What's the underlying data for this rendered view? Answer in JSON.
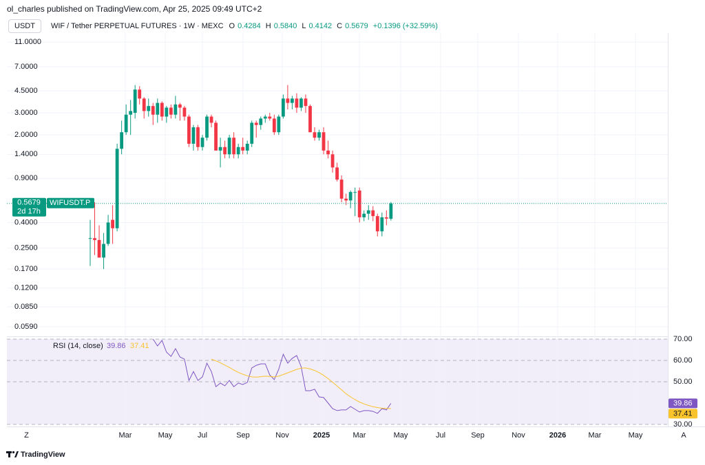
{
  "header": {
    "published": "ol_charles published on TradingView.com, Apr 25, 2025 09:49 UTC+2",
    "currency": "USDT",
    "symbol": "WIF / Tether PERPETUAL FUTURES · 1W · MEXC",
    "ohlc": [
      {
        "key": "O",
        "value": "0.4284"
      },
      {
        "key": "H",
        "value": "0.5840"
      },
      {
        "key": "L",
        "value": "0.4142"
      },
      {
        "key": "C",
        "value": "0.5679"
      }
    ],
    "change": "+0.1396 (+32.59%)"
  },
  "chart_data": [
    {
      "type": "candlestick",
      "ticker": "WIFUSDT.P",
      "countdown": "2d 17h",
      "up_color": "#089981",
      "down_color": "#f23645",
      "log_scale": true,
      "grid": true,
      "open": [
        0.3,
        0.3,
        0.29,
        0.21,
        0.27,
        0.42,
        0.36,
        1.55,
        2.1,
        2.9,
        3.0,
        4.6,
        3.9,
        3.1,
        3.4,
        2.9,
        3.6,
        2.8,
        3.3,
        2.9,
        3.5,
        3.3,
        2.8,
        1.7,
        2.3,
        1.6,
        1.9,
        2.8,
        2.5,
        1.5,
        1.6,
        1.4,
        1.9,
        1.4,
        1.6,
        1.5,
        1.7,
        2.5,
        2.4,
        2.7,
        2.8,
        2.7,
        2.1,
        2.8,
        3.9,
        3.6,
        3.9,
        3.3,
        3.9,
        3.4,
        2.1,
        1.9,
        2.1,
        1.5,
        1.4,
        1.1,
        0.88,
        0.62,
        0.6,
        0.7,
        0.72,
        0.44,
        0.47,
        0.5,
        0.45,
        0.34,
        0.44,
        0.4284
      ],
      "high": [
        0.42,
        0.58,
        0.38,
        0.33,
        0.46,
        0.55,
        1.7,
        2.6,
        3.5,
        3.8,
        5.0,
        4.9,
        4.0,
        3.9,
        3.6,
        3.9,
        3.7,
        3.4,
        3.5,
        4.1,
        3.6,
        3.4,
        2.9,
        2.4,
        2.4,
        2.0,
        2.9,
        2.9,
        2.6,
        1.9,
        1.8,
        2.0,
        2.1,
        1.7,
        1.9,
        1.8,
        2.6,
        2.6,
        2.8,
        2.9,
        3.0,
        2.9,
        2.9,
        4.2,
        5.0,
        4.1,
        4.3,
        4.0,
        4.2,
        3.5,
        2.3,
        2.2,
        2.3,
        1.8,
        1.5,
        1.2,
        0.95,
        0.68,
        0.72,
        0.76,
        0.76,
        0.5,
        0.55,
        0.54,
        0.47,
        0.48,
        0.5,
        0.584
      ],
      "low": [
        0.18,
        0.22,
        0.21,
        0.17,
        0.26,
        0.27,
        0.34,
        1.4,
        2.0,
        2.0,
        2.7,
        3.5,
        2.7,
        2.8,
        2.4,
        2.5,
        2.6,
        2.5,
        2.7,
        2.7,
        2.6,
        2.6,
        1.6,
        1.5,
        1.5,
        1.5,
        1.8,
        2.3,
        1.5,
        1.1,
        1.3,
        1.3,
        1.3,
        1.3,
        1.4,
        1.4,
        1.6,
        1.9,
        2.2,
        2.5,
        2.6,
        2.0,
        2.0,
        2.7,
        3.2,
        3.2,
        3.0,
        3.1,
        3.0,
        2.1,
        1.8,
        1.8,
        1.4,
        1.3,
        1.0,
        0.85,
        0.58,
        0.55,
        0.52,
        0.45,
        0.4,
        0.41,
        0.42,
        0.41,
        0.31,
        0.31,
        0.38,
        0.4142
      ],
      "close": [
        0.3,
        0.29,
        0.21,
        0.27,
        0.4,
        0.36,
        1.55,
        2.1,
        2.9,
        3.1,
        4.6,
        3.9,
        3.1,
        3.4,
        2.9,
        3.6,
        2.8,
        3.3,
        2.9,
        3.5,
        3.3,
        2.8,
        1.7,
        2.3,
        1.6,
        1.9,
        2.8,
        2.5,
        1.5,
        1.6,
        1.4,
        1.9,
        1.4,
        1.6,
        1.5,
        1.7,
        2.5,
        2.4,
        2.7,
        2.8,
        2.7,
        2.1,
        2.8,
        3.9,
        3.6,
        3.9,
        3.3,
        3.9,
        3.4,
        2.1,
        1.9,
        2.1,
        1.5,
        1.4,
        1.1,
        0.88,
        0.62,
        0.6,
        0.7,
        0.7,
        0.44,
        0.47,
        0.5,
        0.45,
        0.34,
        0.44,
        0.43,
        0.5679
      ],
      "ylim": [
        0.05,
        13
      ],
      "yticks": [
        {
          "value": 11,
          "label": "11.0000"
        },
        {
          "value": 7,
          "label": "7.0000"
        },
        {
          "value": 4.5,
          "label": "4.5000"
        },
        {
          "value": 3,
          "label": "3.0000"
        },
        {
          "value": 2,
          "label": "2.0000"
        },
        {
          "value": 1.4,
          "label": "1.4000"
        },
        {
          "value": 0.9,
          "label": "0.9000"
        },
        {
          "value": 0.4,
          "label": "0.4000"
        },
        {
          "value": 0.25,
          "label": "0.2500"
        },
        {
          "value": 0.17,
          "label": "0.1700"
        },
        {
          "value": 0.12,
          "label": "0.1200"
        },
        {
          "value": 0.085,
          "label": "0.0850"
        },
        {
          "value": 0.059,
          "label": "0.0590"
        }
      ],
      "x_labels": [
        "Mar",
        "May",
        "Jul",
        "Sep",
        "Nov",
        "2025",
        "Mar",
        "May",
        "Jul",
        "Sep",
        "Nov",
        "2026",
        "Mar",
        "May"
      ]
    },
    {
      "type": "line",
      "title": "RSI (14, close)",
      "band_fill": "#7e57c2",
      "series": [
        {
          "color": "#7e57c2",
          "values": [
            null,
            null,
            null,
            null,
            null,
            null,
            null,
            null,
            null,
            null,
            null,
            null,
            null,
            null,
            70.0,
            66.8,
            69.4,
            63.9,
            61.9,
            65.5,
            61.6,
            60.6,
            50.6,
            54.8,
            50.6,
            52.3,
            58.7,
            54.8,
            47.7,
            49.4,
            48.1,
            50.6,
            47.7,
            49.4,
            48.7,
            49.7,
            56.5,
            57.7,
            58.4,
            58.4,
            53.2,
            51.0,
            55.8,
            62.9,
            58.7,
            61.0,
            62.3,
            57.1,
            45.8,
            45.8,
            46.5,
            42.9,
            42.6,
            40.0,
            37.4,
            36.5,
            36.8,
            36.8,
            38.4,
            37.1,
            35.8,
            36.5,
            36.5,
            36.1,
            35.2,
            37.4,
            36.8,
            39.86
          ]
        },
        {
          "color": "#f9c32b",
          "values": [
            null,
            null,
            null,
            null,
            null,
            null,
            null,
            null,
            null,
            null,
            null,
            null,
            null,
            null,
            null,
            null,
            null,
            null,
            null,
            null,
            null,
            null,
            null,
            null,
            null,
            null,
            null,
            60.6,
            59.8,
            58.9,
            57.8,
            56.7,
            55.5,
            54.4,
            53.5,
            52.8,
            52.3,
            52.2,
            52.4,
            52.6,
            52.5,
            52.3,
            52.6,
            53.4,
            54.2,
            55.0,
            55.8,
            56.4,
            56.5,
            56.0,
            55.3,
            54.3,
            53.0,
            51.5,
            49.8,
            48.0,
            46.2,
            44.4,
            42.9,
            41.6,
            40.5,
            39.6,
            38.9,
            38.3,
            37.9,
            37.6,
            37.5,
            37.41
          ]
        }
      ],
      "ylim": [
        30,
        70
      ],
      "yticks": [
        {
          "value": 70,
          "label": "70.00"
        },
        {
          "value": 60,
          "label": "60.00"
        },
        {
          "value": 50,
          "label": "50.00"
        },
        {
          "value": 30,
          "label": "30.00"
        }
      ]
    }
  ],
  "footer": {
    "brand": "TradingView",
    "left_button": "Z",
    "right_button": "A"
  }
}
